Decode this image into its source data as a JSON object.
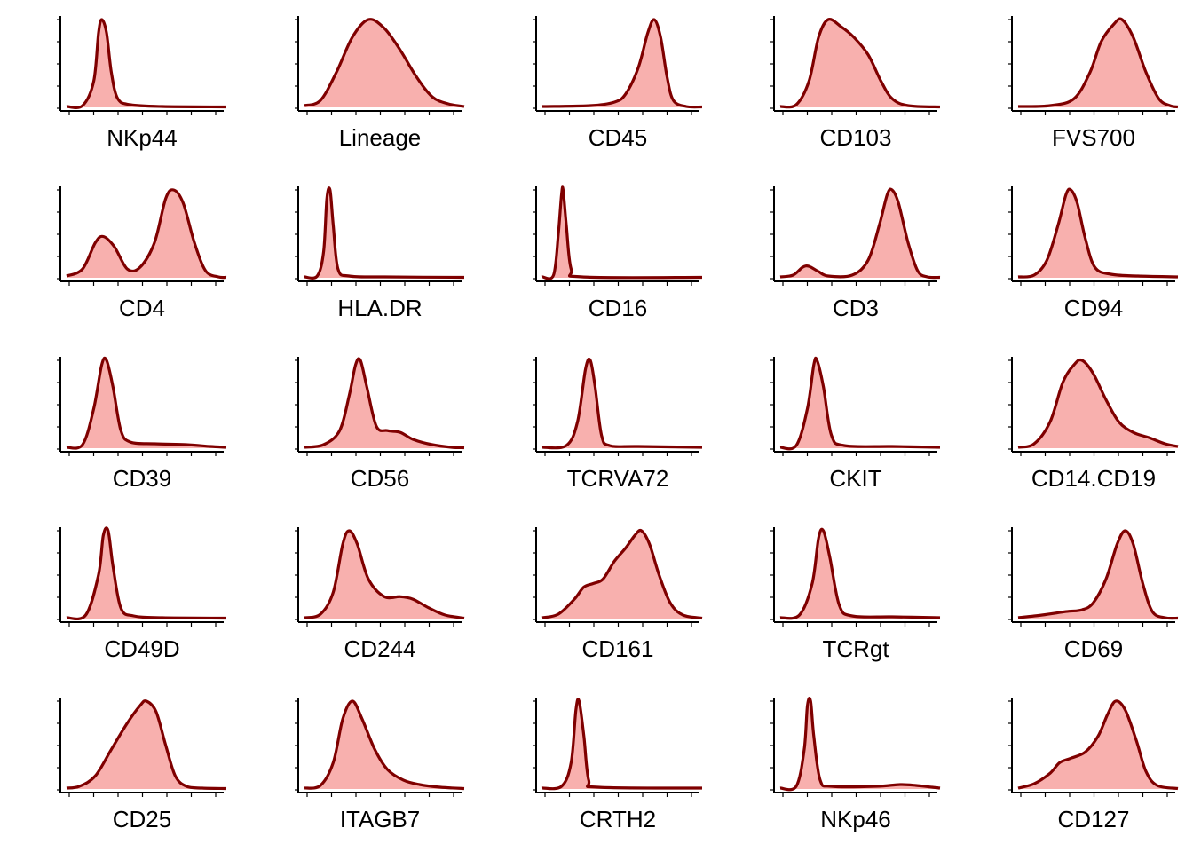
{
  "style": {
    "fill": "#f8b0ae",
    "stroke": "#7f0000",
    "axis": "#000000"
  },
  "chart_data": [
    {
      "type": "area",
      "title": "NKp44",
      "xlabel": "NKp44",
      "ylabel": "",
      "points": [
        [
          0,
          0.01
        ],
        [
          0.1,
          0.02
        ],
        [
          0.17,
          0.3
        ],
        [
          0.2,
          0.85
        ],
        [
          0.22,
          1.0
        ],
        [
          0.25,
          0.85
        ],
        [
          0.28,
          0.4
        ],
        [
          0.32,
          0.1
        ],
        [
          0.4,
          0.03
        ],
        [
          0.6,
          0.01
        ],
        [
          1,
          0.005
        ]
      ]
    },
    {
      "type": "area",
      "title": "Lineage",
      "xlabel": "Lineage",
      "ylabel": "",
      "points": [
        [
          0,
          0.02
        ],
        [
          0.1,
          0.08
        ],
        [
          0.2,
          0.4
        ],
        [
          0.3,
          0.8
        ],
        [
          0.4,
          1.0
        ],
        [
          0.5,
          0.9
        ],
        [
          0.6,
          0.65
        ],
        [
          0.7,
          0.35
        ],
        [
          0.8,
          0.12
        ],
        [
          0.9,
          0.04
        ],
        [
          1,
          0.01
        ]
      ]
    },
    {
      "type": "area",
      "title": "CD45",
      "xlabel": "CD45",
      "ylabel": "",
      "points": [
        [
          0,
          0.01
        ],
        [
          0.3,
          0.02
        ],
        [
          0.45,
          0.06
        ],
        [
          0.52,
          0.15
        ],
        [
          0.6,
          0.45
        ],
        [
          0.66,
          0.85
        ],
        [
          0.7,
          1.0
        ],
        [
          0.74,
          0.8
        ],
        [
          0.78,
          0.35
        ],
        [
          0.82,
          0.08
        ],
        [
          0.9,
          0.01
        ],
        [
          1,
          0.005
        ]
      ]
    },
    {
      "type": "area",
      "title": "CD103",
      "xlabel": "CD103",
      "ylabel": "",
      "points": [
        [
          0,
          0.01
        ],
        [
          0.1,
          0.03
        ],
        [
          0.18,
          0.3
        ],
        [
          0.24,
          0.8
        ],
        [
          0.3,
          1.0
        ],
        [
          0.38,
          0.92
        ],
        [
          0.46,
          0.8
        ],
        [
          0.55,
          0.6
        ],
        [
          0.63,
          0.3
        ],
        [
          0.7,
          0.1
        ],
        [
          0.8,
          0.02
        ],
        [
          1,
          0.005
        ]
      ]
    },
    {
      "type": "area",
      "title": "FVS700",
      "xlabel": "FVS700",
      "ylabel": "",
      "points": [
        [
          0,
          0.01
        ],
        [
          0.2,
          0.02
        ],
        [
          0.35,
          0.1
        ],
        [
          0.45,
          0.4
        ],
        [
          0.52,
          0.75
        ],
        [
          0.6,
          0.95
        ],
        [
          0.65,
          1.0
        ],
        [
          0.72,
          0.8
        ],
        [
          0.8,
          0.4
        ],
        [
          0.88,
          0.1
        ],
        [
          0.95,
          0.02
        ],
        [
          1,
          0.005
        ]
      ]
    },
    {
      "type": "area",
      "title": "CD4",
      "xlabel": "CD4",
      "ylabel": "",
      "points": [
        [
          0,
          0.02
        ],
        [
          0.1,
          0.1
        ],
        [
          0.18,
          0.4
        ],
        [
          0.23,
          0.47
        ],
        [
          0.3,
          0.35
        ],
        [
          0.38,
          0.1
        ],
        [
          0.46,
          0.12
        ],
        [
          0.55,
          0.4
        ],
        [
          0.62,
          0.9
        ],
        [
          0.67,
          1.0
        ],
        [
          0.73,
          0.85
        ],
        [
          0.8,
          0.4
        ],
        [
          0.87,
          0.08
        ],
        [
          0.95,
          0.01
        ],
        [
          1,
          0.005
        ]
      ]
    },
    {
      "type": "area",
      "title": "HLA.DR",
      "xlabel": "HLA.DR",
      "ylabel": "",
      "points": [
        [
          0,
          0.01
        ],
        [
          0.08,
          0.02
        ],
        [
          0.12,
          0.3
        ],
        [
          0.14,
          0.9
        ],
        [
          0.16,
          1.0
        ],
        [
          0.18,
          0.6
        ],
        [
          0.21,
          0.1
        ],
        [
          0.28,
          0.02
        ],
        [
          0.5,
          0.01
        ],
        [
          1,
          0.005
        ]
      ]
    },
    {
      "type": "area",
      "title": "CD16",
      "xlabel": "CD16",
      "ylabel": "",
      "points": [
        [
          0,
          0.01
        ],
        [
          0.07,
          0.03
        ],
        [
          0.1,
          0.5
        ],
        [
          0.12,
          0.95
        ],
        [
          0.13,
          1.0
        ],
        [
          0.15,
          0.6
        ],
        [
          0.18,
          0.1
        ],
        [
          0.25,
          0.01
        ],
        [
          1,
          0.005
        ]
      ]
    },
    {
      "type": "area",
      "title": "CD3",
      "xlabel": "CD3",
      "ylabel": "",
      "points": [
        [
          0,
          0.01
        ],
        [
          0.08,
          0.03
        ],
        [
          0.14,
          0.12
        ],
        [
          0.18,
          0.13
        ],
        [
          0.24,
          0.07
        ],
        [
          0.3,
          0.02
        ],
        [
          0.45,
          0.03
        ],
        [
          0.55,
          0.2
        ],
        [
          0.62,
          0.6
        ],
        [
          0.67,
          0.95
        ],
        [
          0.7,
          1.0
        ],
        [
          0.74,
          0.85
        ],
        [
          0.8,
          0.4
        ],
        [
          0.86,
          0.08
        ],
        [
          0.92,
          0.01
        ],
        [
          1,
          0.005
        ]
      ]
    },
    {
      "type": "area",
      "title": "CD94",
      "xlabel": "CD94",
      "ylabel": "",
      "points": [
        [
          0,
          0.01
        ],
        [
          0.1,
          0.03
        ],
        [
          0.18,
          0.2
        ],
        [
          0.25,
          0.6
        ],
        [
          0.3,
          0.95
        ],
        [
          0.33,
          1.0
        ],
        [
          0.37,
          0.85
        ],
        [
          0.42,
          0.45
        ],
        [
          0.48,
          0.12
        ],
        [
          0.58,
          0.04
        ],
        [
          0.75,
          0.02
        ],
        [
          1,
          0.01
        ]
      ]
    },
    {
      "type": "area",
      "title": "CD39",
      "xlabel": "CD39",
      "ylabel": "",
      "points": [
        [
          0,
          0.01
        ],
        [
          0.1,
          0.04
        ],
        [
          0.17,
          0.45
        ],
        [
          0.22,
          0.95
        ],
        [
          0.25,
          1.0
        ],
        [
          0.29,
          0.7
        ],
        [
          0.34,
          0.2
        ],
        [
          0.4,
          0.07
        ],
        [
          0.55,
          0.05
        ],
        [
          0.75,
          0.04
        ],
        [
          0.9,
          0.02
        ],
        [
          1,
          0.01
        ]
      ]
    },
    {
      "type": "area",
      "title": "CD56",
      "xlabel": "CD56",
      "ylabel": "",
      "points": [
        [
          0,
          0.01
        ],
        [
          0.12,
          0.04
        ],
        [
          0.22,
          0.2
        ],
        [
          0.28,
          0.6
        ],
        [
          0.32,
          0.95
        ],
        [
          0.35,
          1.0
        ],
        [
          0.39,
          0.7
        ],
        [
          0.45,
          0.25
        ],
        [
          0.52,
          0.2
        ],
        [
          0.6,
          0.18
        ],
        [
          0.68,
          0.1
        ],
        [
          0.8,
          0.04
        ],
        [
          0.92,
          0.01
        ],
        [
          1,
          0.005
        ]
      ]
    },
    {
      "type": "area",
      "title": "TCRVA72",
      "xlabel": "TCRVA72",
      "ylabel": "",
      "points": [
        [
          0,
          0.01
        ],
        [
          0.15,
          0.03
        ],
        [
          0.22,
          0.3
        ],
        [
          0.27,
          0.9
        ],
        [
          0.3,
          1.0
        ],
        [
          0.33,
          0.7
        ],
        [
          0.37,
          0.15
        ],
        [
          0.42,
          0.03
        ],
        [
          0.6,
          0.02
        ],
        [
          1,
          0.01
        ]
      ]
    },
    {
      "type": "area",
      "title": "CKIT",
      "xlabel": "CKIT",
      "ylabel": "",
      "points": [
        [
          0,
          0.01
        ],
        [
          0.1,
          0.03
        ],
        [
          0.17,
          0.45
        ],
        [
          0.21,
          0.95
        ],
        [
          0.23,
          1.0
        ],
        [
          0.27,
          0.7
        ],
        [
          0.32,
          0.15
        ],
        [
          0.4,
          0.03
        ],
        [
          0.7,
          0.02
        ],
        [
          1,
          0.01
        ]
      ]
    },
    {
      "type": "area",
      "title": "CD14.CD19",
      "xlabel": "CD14.CD19",
      "ylabel": "",
      "points": [
        [
          0,
          0.01
        ],
        [
          0.1,
          0.05
        ],
        [
          0.2,
          0.3
        ],
        [
          0.28,
          0.75
        ],
        [
          0.35,
          0.95
        ],
        [
          0.4,
          1.0
        ],
        [
          0.47,
          0.85
        ],
        [
          0.55,
          0.55
        ],
        [
          0.63,
          0.3
        ],
        [
          0.72,
          0.18
        ],
        [
          0.82,
          0.12
        ],
        [
          0.92,
          0.05
        ],
        [
          1,
          0.02
        ]
      ]
    },
    {
      "type": "area",
      "title": "CD49D",
      "xlabel": "CD49D",
      "ylabel": "",
      "points": [
        [
          0,
          0.01
        ],
        [
          0.12,
          0.04
        ],
        [
          0.2,
          0.5
        ],
        [
          0.23,
          0.95
        ],
        [
          0.26,
          1.0
        ],
        [
          0.29,
          0.6
        ],
        [
          0.34,
          0.12
        ],
        [
          0.42,
          0.03
        ],
        [
          0.6,
          0.01
        ],
        [
          1,
          0.005
        ]
      ]
    },
    {
      "type": "area",
      "title": "CD244",
      "xlabel": "CD244",
      "ylabel": "",
      "points": [
        [
          0,
          0.01
        ],
        [
          0.1,
          0.05
        ],
        [
          0.18,
          0.3
        ],
        [
          0.24,
          0.85
        ],
        [
          0.28,
          1.0
        ],
        [
          0.33,
          0.85
        ],
        [
          0.4,
          0.45
        ],
        [
          0.5,
          0.25
        ],
        [
          0.6,
          0.25
        ],
        [
          0.68,
          0.22
        ],
        [
          0.78,
          0.12
        ],
        [
          0.88,
          0.04
        ],
        [
          1,
          0.005
        ]
      ]
    },
    {
      "type": "area",
      "title": "CD161",
      "xlabel": "CD161",
      "ylabel": "",
      "points": [
        [
          0,
          0.01
        ],
        [
          0.1,
          0.05
        ],
        [
          0.2,
          0.22
        ],
        [
          0.26,
          0.36
        ],
        [
          0.32,
          0.4
        ],
        [
          0.38,
          0.45
        ],
        [
          0.45,
          0.65
        ],
        [
          0.52,
          0.8
        ],
        [
          0.58,
          0.95
        ],
        [
          0.62,
          1.0
        ],
        [
          0.67,
          0.85
        ],
        [
          0.73,
          0.5
        ],
        [
          0.8,
          0.18
        ],
        [
          0.88,
          0.04
        ],
        [
          1,
          0.005
        ]
      ]
    },
    {
      "type": "area",
      "title": "TCRgt",
      "xlabel": "TCRgt",
      "ylabel": "",
      "points": [
        [
          0,
          0.01
        ],
        [
          0.12,
          0.04
        ],
        [
          0.2,
          0.4
        ],
        [
          0.24,
          0.92
        ],
        [
          0.27,
          1.0
        ],
        [
          0.31,
          0.7
        ],
        [
          0.37,
          0.15
        ],
        [
          0.45,
          0.03
        ],
        [
          0.7,
          0.02
        ],
        [
          1,
          0.01
        ]
      ]
    },
    {
      "type": "area",
      "title": "CD69",
      "xlabel": "CD69",
      "ylabel": "",
      "points": [
        [
          0,
          0.01
        ],
        [
          0.15,
          0.04
        ],
        [
          0.3,
          0.08
        ],
        [
          0.4,
          0.1
        ],
        [
          0.47,
          0.18
        ],
        [
          0.55,
          0.45
        ],
        [
          0.62,
          0.85
        ],
        [
          0.67,
          1.0
        ],
        [
          0.72,
          0.85
        ],
        [
          0.78,
          0.4
        ],
        [
          0.84,
          0.08
        ],
        [
          0.92,
          0.01
        ],
        [
          1,
          0.005
        ]
      ]
    },
    {
      "type": "area",
      "title": "CD25",
      "xlabel": "CD25",
      "ylabel": "",
      "points": [
        [
          0,
          0.01
        ],
        [
          0.08,
          0.03
        ],
        [
          0.18,
          0.15
        ],
        [
          0.28,
          0.45
        ],
        [
          0.38,
          0.75
        ],
        [
          0.46,
          0.95
        ],
        [
          0.5,
          1.0
        ],
        [
          0.56,
          0.88
        ],
        [
          0.62,
          0.5
        ],
        [
          0.68,
          0.15
        ],
        [
          0.75,
          0.03
        ],
        [
          0.85,
          0.01
        ],
        [
          1,
          0.005
        ]
      ]
    },
    {
      "type": "area",
      "title": "ITAGB7",
      "xlabel": "ITAGB7",
      "ylabel": "",
      "points": [
        [
          0,
          0.01
        ],
        [
          0.1,
          0.04
        ],
        [
          0.18,
          0.3
        ],
        [
          0.24,
          0.8
        ],
        [
          0.3,
          1.0
        ],
        [
          0.36,
          0.8
        ],
        [
          0.44,
          0.45
        ],
        [
          0.52,
          0.22
        ],
        [
          0.62,
          0.1
        ],
        [
          0.72,
          0.05
        ],
        [
          0.85,
          0.02
        ],
        [
          1,
          0.005
        ]
      ]
    },
    {
      "type": "area",
      "title": "CRTH2",
      "xlabel": "CRTH2",
      "ylabel": "",
      "points": [
        [
          0,
          0.01
        ],
        [
          0.12,
          0.03
        ],
        [
          0.18,
          0.3
        ],
        [
          0.21,
          0.9
        ],
        [
          0.23,
          1.0
        ],
        [
          0.26,
          0.6
        ],
        [
          0.29,
          0.1
        ],
        [
          0.35,
          0.02
        ],
        [
          1,
          0.01
        ]
      ]
    },
    {
      "type": "area",
      "title": "NKp46",
      "xlabel": "NKp46",
      "ylabel": "",
      "points": [
        [
          0,
          0.01
        ],
        [
          0.1,
          0.03
        ],
        [
          0.15,
          0.45
        ],
        [
          0.17,
          0.95
        ],
        [
          0.19,
          1.0
        ],
        [
          0.21,
          0.6
        ],
        [
          0.25,
          0.1
        ],
        [
          0.32,
          0.03
        ],
        [
          0.6,
          0.03
        ],
        [
          0.75,
          0.05
        ],
        [
          0.85,
          0.04
        ],
        [
          0.95,
          0.02
        ],
        [
          1,
          0.01
        ]
      ]
    },
    {
      "type": "area",
      "title": "CD127",
      "xlabel": "CD127",
      "ylabel": "",
      "points": [
        [
          0,
          0.01
        ],
        [
          0.1,
          0.06
        ],
        [
          0.2,
          0.18
        ],
        [
          0.26,
          0.3
        ],
        [
          0.33,
          0.35
        ],
        [
          0.42,
          0.42
        ],
        [
          0.5,
          0.6
        ],
        [
          0.56,
          0.85
        ],
        [
          0.61,
          1.0
        ],
        [
          0.67,
          0.9
        ],
        [
          0.74,
          0.55
        ],
        [
          0.8,
          0.2
        ],
        [
          0.87,
          0.04
        ],
        [
          1,
          0.005
        ]
      ]
    }
  ]
}
